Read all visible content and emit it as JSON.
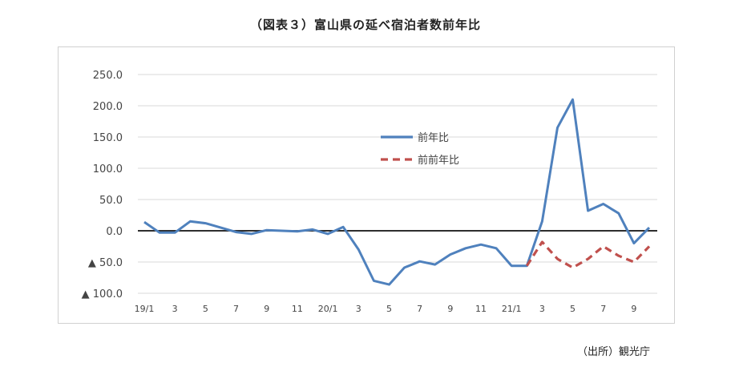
{
  "title": "（図表３）富山県の延べ宿泊者数前年比",
  "source": "（出所）観光庁",
  "chart_data": {
    "type": "line",
    "title": "（図表３）富山県の延べ宿泊者数前年比",
    "xlabel": "",
    "ylabel": "",
    "ylim": [
      -100,
      250
    ],
    "yticks": [
      250,
      200,
      150,
      100,
      50,
      0,
      -50,
      -100
    ],
    "ytick_labels": [
      "250.0",
      "200.0",
      "150.0",
      "100.0",
      "50.0",
      "0.0",
      "▲ 50.0",
      "▲ 100.0"
    ],
    "x": [
      "19/1",
      "19/2",
      "19/3",
      "19/4",
      "19/5",
      "19/6",
      "19/7",
      "19/8",
      "19/9",
      "19/10",
      "19/11",
      "19/12",
      "20/1",
      "20/2",
      "20/3",
      "20/4",
      "20/5",
      "20/6",
      "20/7",
      "20/8",
      "20/9",
      "20/10",
      "20/11",
      "20/12",
      "21/1",
      "21/2",
      "21/3",
      "21/4",
      "21/5",
      "21/6",
      "21/7",
      "21/8",
      "21/9",
      "21/10"
    ],
    "xtick_labels": [
      "19/1",
      "",
      "3",
      "",
      "5",
      "",
      "7",
      "",
      "9",
      "",
      "11",
      "",
      "20/1",
      "",
      "3",
      "",
      "5",
      "",
      "7",
      "",
      "9",
      "",
      "11",
      "",
      "21/1",
      "",
      "3",
      "",
      "5",
      "",
      "7",
      "",
      "9",
      ""
    ],
    "grid": true,
    "legend_position": "center-right",
    "series": [
      {
        "name": "前年比",
        "color": "#4f81bd",
        "style": "solid",
        "values": [
          14,
          -3,
          -3,
          15,
          12,
          5,
          -2,
          -5,
          1,
          0,
          -1,
          2,
          -5,
          6,
          -30,
          -80,
          -86,
          -59,
          -49,
          -54,
          -38,
          -28,
          -22,
          -28,
          -56,
          -56,
          15,
          165,
          210,
          32,
          43,
          28,
          -20,
          5
        ]
      },
      {
        "name": "前前年比",
        "color": "#c0504d",
        "style": "dashed",
        "values": [
          null,
          null,
          null,
          null,
          null,
          null,
          null,
          null,
          null,
          null,
          null,
          null,
          null,
          null,
          null,
          null,
          null,
          null,
          null,
          null,
          null,
          null,
          null,
          null,
          null,
          -56,
          -18,
          -45,
          -59,
          -45,
          -25,
          -40,
          -50,
          -25
        ]
      }
    ]
  }
}
